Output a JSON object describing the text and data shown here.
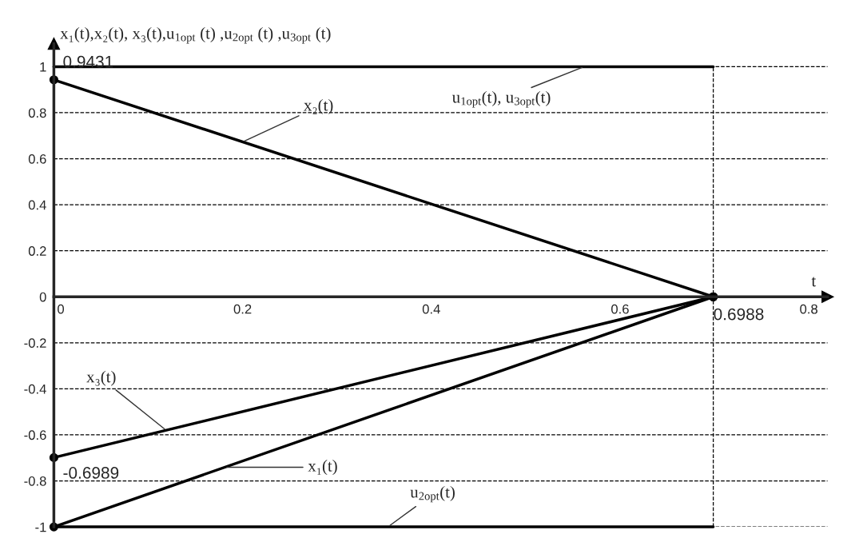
{
  "chart_data": {
    "type": "line",
    "ylabel": "x₁(t),x₂(t), x₃(t),u$_{1opt}$ (t) ,u$_{2opt}$ (t) ,u$_{3opt}$ (t)",
    "xlabel": "t",
    "x": [
      0,
      0.6988
    ],
    "series": [
      {
        "color": "#000000",
        "values": [
          0.9431,
          0
        ],
        "marker": "circle"
      },
      {
        "color": "#000000",
        "values": [
          -1,
          0
        ],
        "marker": "circle"
      },
      {
        "color": "#000000",
        "values": [
          -0.6989,
          0
        ],
        "marker": "circle"
      },
      {
        "color": "#000000",
        "values": [
          1,
          1
        ]
      },
      {
        "color": "#000000",
        "values": [
          -1,
          -1
        ]
      }
    ],
    "annotations": [
      {
        "text": "x₂(t)",
        "x": 0.2,
        "y": 0.673
      },
      {
        "text": "u$_{1opt}$(t), u$_{3opt}$(t)",
        "x": 0.562,
        "y": 1
      },
      {
        "text": "x₃(t)",
        "x": 0.119,
        "y": -0.58
      },
      {
        "text": "x₁(t)",
        "x": 0.181,
        "y": -0.741
      },
      {
        "text": "u$_{2opt}$(t)",
        "x": 0.354,
        "y": -1
      },
      {
        "text": "0.9431",
        "x": 0,
        "y": 0.9431
      },
      {
        "text": "-0.6989",
        "x": 0,
        "y": -0.6989
      },
      {
        "text": "0.6988",
        "x": 0.6988,
        "y": 0
      }
    ],
    "ref_lines": [
      {
        "axis": "x",
        "value": 0.6988,
        "line_style": "dashed"
      }
    ],
    "xlim": [
      0,
      0.82
    ],
    "ylim": [
      -1,
      1.1
    ],
    "xticks": [
      0,
      0.2,
      0.4,
      0.6,
      0.8
    ],
    "yticks": [
      -1,
      -0.8,
      -0.6,
      -0.4,
      -0.2,
      0,
      0.2,
      0.4,
      0.6,
      0.8,
      1
    ],
    "grid": "y",
    "line_style": "solid",
    "legend": false
  }
}
